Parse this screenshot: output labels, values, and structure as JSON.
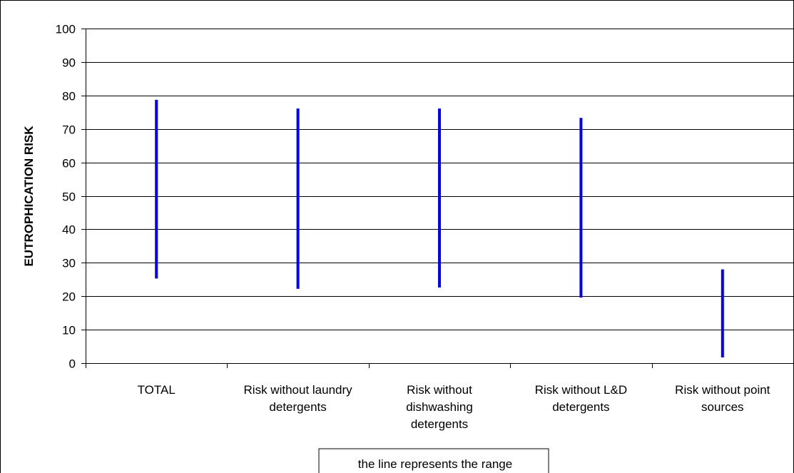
{
  "chart_data": {
    "type": "range",
    "title": "",
    "xlabel": "",
    "ylabel": "EUTROPHICATION RISK",
    "ylim": [
      0,
      100
    ],
    "yticks": [
      "0",
      "10",
      "20",
      "30",
      "40",
      "50",
      "60",
      "70",
      "80",
      "90",
      "100"
    ],
    "grid": true,
    "categories": [
      [
        "TOTAL"
      ],
      [
        "Risk without laundry",
        "detergents"
      ],
      [
        "Risk without",
        "dishwashing",
        "detergents"
      ],
      [
        "Risk without L&D",
        "detergents"
      ],
      [
        "Risk without point",
        "sources"
      ]
    ],
    "ranges": [
      {
        "low": 25.3,
        "high": 78.7
      },
      {
        "low": 22.2,
        "high": 76.1
      },
      {
        "low": 22.6,
        "high": 76.1
      },
      {
        "low": 19.6,
        "high": 73.3
      },
      {
        "low": 1.7,
        "high": 28.0
      }
    ],
    "annotation": "the line represents the range",
    "colors": {
      "range_line": "#0000ff",
      "grid": "#000000",
      "frame": "#000000",
      "background": "#ffffff"
    }
  }
}
